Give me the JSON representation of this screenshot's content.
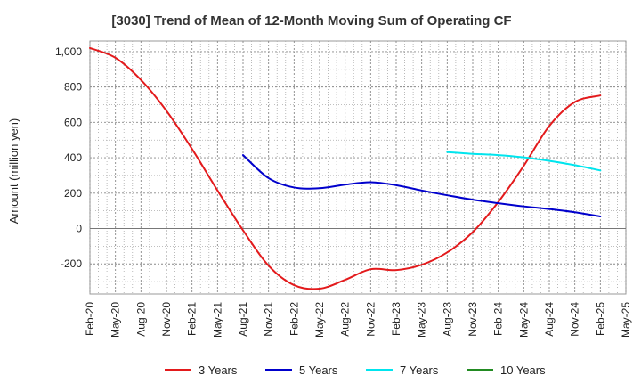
{
  "chart_data": {
    "type": "line",
    "title": "[3030]  Trend of Mean of 12-Month Moving Sum of Operating CF",
    "xlabel": "",
    "ylabel": "Amount (million yen)",
    "ylim": [
      -370,
      1060
    ],
    "y_ticks": [
      -200,
      0,
      200,
      400,
      600,
      800,
      1000
    ],
    "y_tick_labels": [
      "-200",
      "0",
      "200",
      "400",
      "600",
      "800",
      "1,000"
    ],
    "x_ticks": [
      "Feb-20",
      "May-20",
      "Aug-20",
      "Nov-20",
      "Feb-21",
      "May-21",
      "Aug-21",
      "Nov-21",
      "Feb-22",
      "May-22",
      "Aug-22",
      "Nov-22",
      "Feb-23",
      "May-23",
      "Aug-23",
      "Nov-23",
      "Feb-24",
      "May-24",
      "Aug-24",
      "Nov-24",
      "Feb-25",
      "May-25"
    ],
    "grid": true,
    "legend_position": "bottom",
    "series": [
      {
        "name": "3 Years",
        "color": "#e31a1c",
        "x_index": [
          0,
          1,
          2,
          3,
          4,
          5,
          6,
          7,
          8,
          9,
          10,
          11,
          12,
          13,
          14,
          15,
          16,
          17,
          18,
          19,
          20
        ],
        "values": [
          1020,
          965,
          840,
          665,
          450,
          215,
          -10,
          -210,
          -320,
          -340,
          -290,
          -230,
          -235,
          -205,
          -135,
          -20,
          150,
          355,
          580,
          715,
          752
        ]
      },
      {
        "name": "5 Years",
        "color": "#0000cc",
        "x_index": [
          6,
          7,
          8,
          9,
          10,
          11,
          12,
          13,
          14,
          15,
          16,
          17,
          18,
          19,
          20
        ],
        "values": [
          415,
          285,
          232,
          228,
          248,
          262,
          245,
          215,
          188,
          163,
          143,
          125,
          110,
          92,
          68
        ]
      },
      {
        "name": "7 Years",
        "color": "#00e5ee",
        "x_index": [
          14,
          15,
          16,
          17,
          18,
          19,
          20
        ],
        "values": [
          432,
          422,
          415,
          402,
          382,
          358,
          328
        ]
      },
      {
        "name": "10 Years",
        "color": "#228b22",
        "x_index": [],
        "values": []
      }
    ]
  }
}
